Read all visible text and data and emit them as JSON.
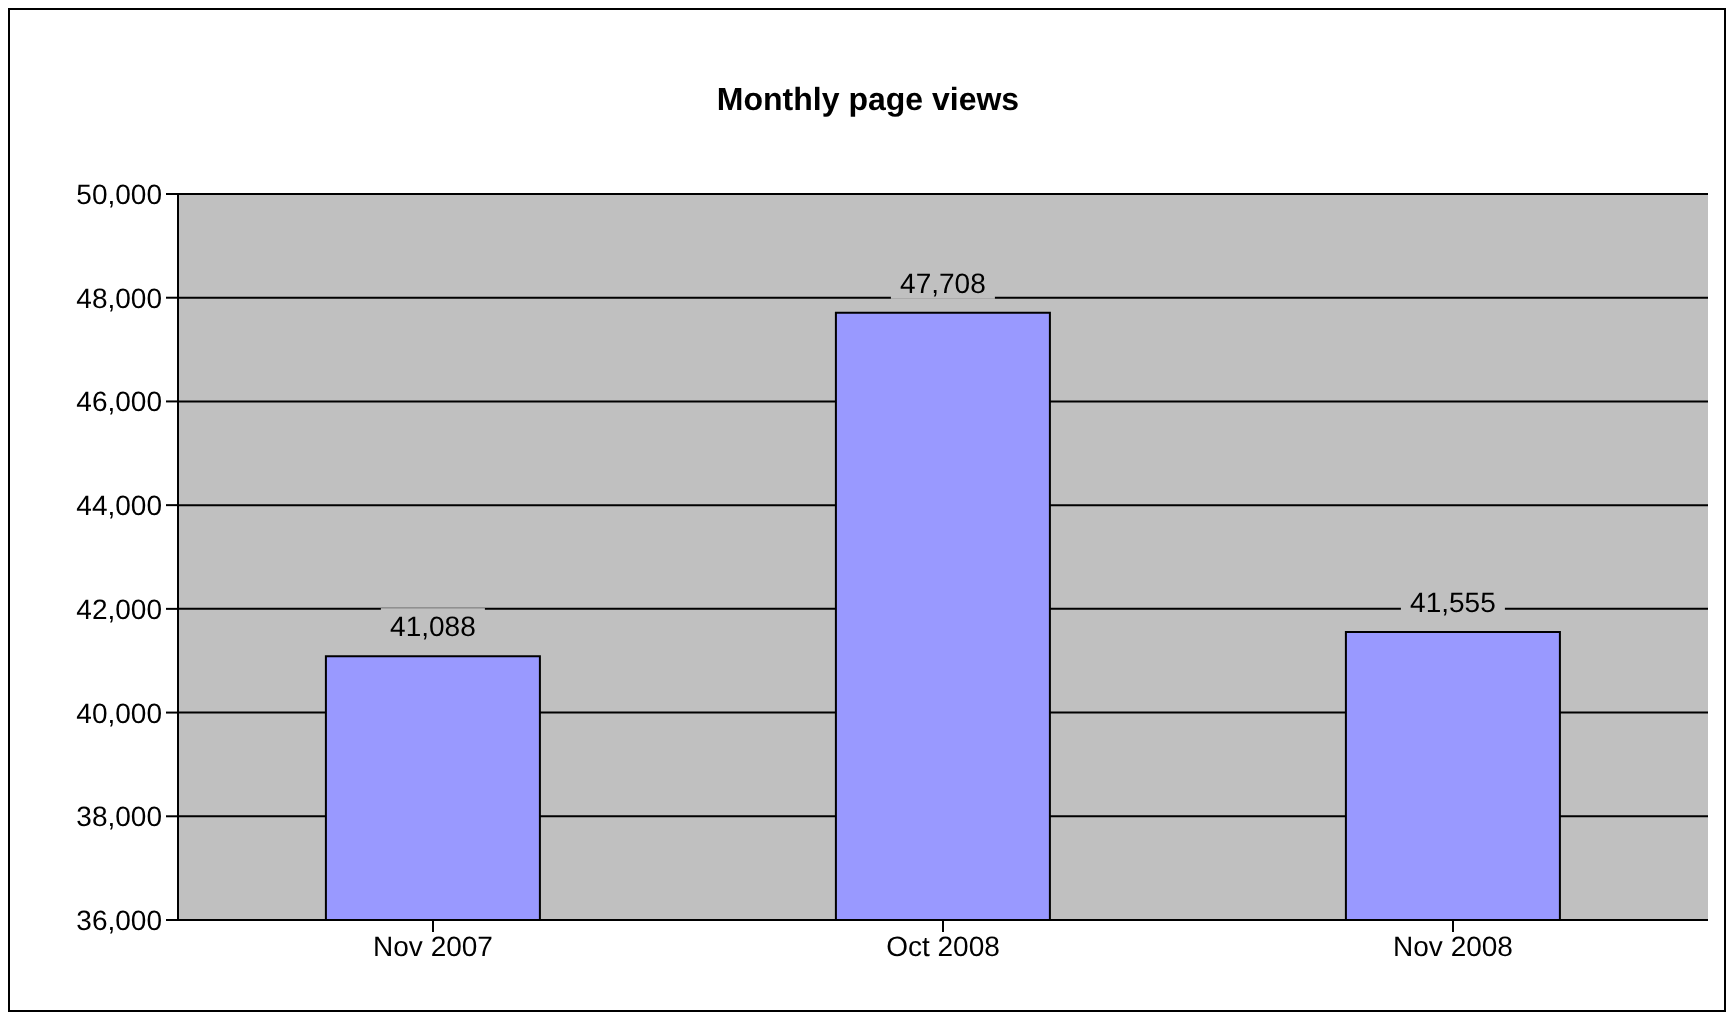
{
  "chart_data": {
    "type": "bar",
    "title": "Monthly page views",
    "categories": [
      "Nov 2007",
      "Oct 2008",
      "Nov 2008"
    ],
    "values": [
      41088,
      47708,
      41555
    ],
    "color": "#9999ff",
    "value_labels": [
      "41,088",
      "47,708",
      "41,555"
    ],
    "ylim": [
      36000,
      50000
    ],
    "yticks": [
      {
        "value": 36000,
        "label": "36,000"
      },
      {
        "value": 38000,
        "label": "38,000"
      },
      {
        "value": 40000,
        "label": "40,000"
      },
      {
        "value": 42000,
        "label": "42,000"
      },
      {
        "value": 44000,
        "label": "44,000"
      },
      {
        "value": 46000,
        "label": "46,000"
      },
      {
        "value": 48000,
        "label": "48,000"
      },
      {
        "value": 50000,
        "label": "50,000"
      }
    ],
    "grid": "y"
  }
}
